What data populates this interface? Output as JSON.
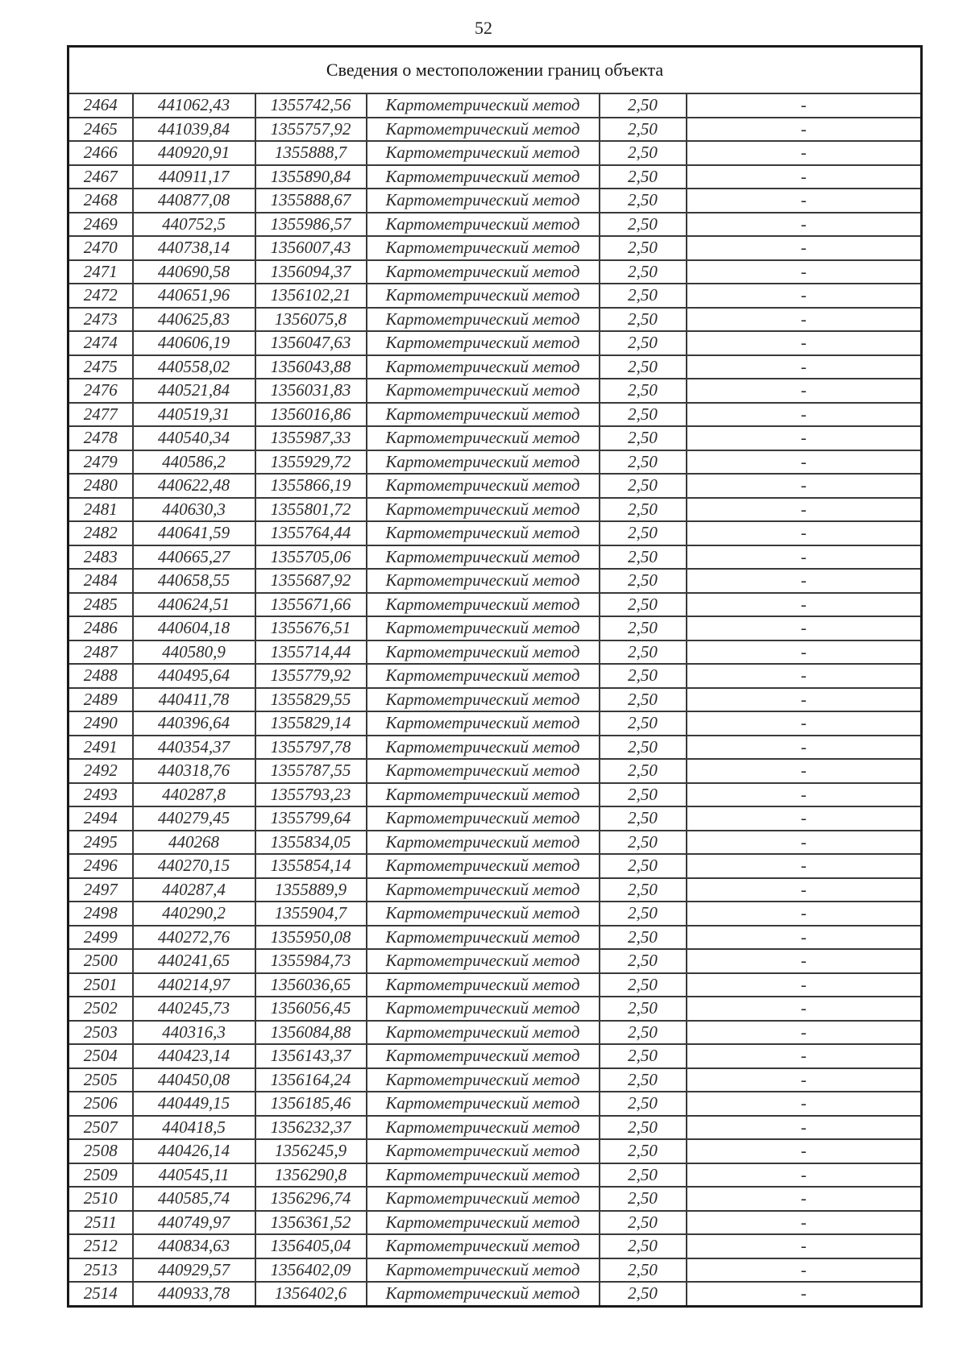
{
  "page": {
    "number": "52"
  },
  "table": {
    "title": "Сведения о местоположении границ объекта",
    "rows": [
      [
        "2464",
        "441062,43",
        "1355742,56",
        "Картометрический метод",
        "2,50",
        "-"
      ],
      [
        "2465",
        "441039,84",
        "1355757,92",
        "Картометрический метод",
        "2,50",
        "-"
      ],
      [
        "2466",
        "440920,91",
        "1355888,7",
        "Картометрический метод",
        "2,50",
        "-"
      ],
      [
        "2467",
        "440911,17",
        "1355890,84",
        "Картометрический метод",
        "2,50",
        "-"
      ],
      [
        "2468",
        "440877,08",
        "1355888,67",
        "Картометрический метод",
        "2,50",
        "-"
      ],
      [
        "2469",
        "440752,5",
        "1355986,57",
        "Картометрический метод",
        "2,50",
        "-"
      ],
      [
        "2470",
        "440738,14",
        "1356007,43",
        "Картометрический метод",
        "2,50",
        "-"
      ],
      [
        "2471",
        "440690,58",
        "1356094,37",
        "Картометрический метод",
        "2,50",
        "-"
      ],
      [
        "2472",
        "440651,96",
        "1356102,21",
        "Картометрический метод",
        "2,50",
        "-"
      ],
      [
        "2473",
        "440625,83",
        "1356075,8",
        "Картометрический метод",
        "2,50",
        "-"
      ],
      [
        "2474",
        "440606,19",
        "1356047,63",
        "Картометрический метод",
        "2,50",
        "-"
      ],
      [
        "2475",
        "440558,02",
        "1356043,88",
        "Картометрический метод",
        "2,50",
        "-"
      ],
      [
        "2476",
        "440521,84",
        "1356031,83",
        "Картометрический метод",
        "2,50",
        "-"
      ],
      [
        "2477",
        "440519,31",
        "1356016,86",
        "Картометрический метод",
        "2,50",
        "-"
      ],
      [
        "2478",
        "440540,34",
        "1355987,33",
        "Картометрический метод",
        "2,50",
        "-"
      ],
      [
        "2479",
        "440586,2",
        "1355929,72",
        "Картометрический метод",
        "2,50",
        "-"
      ],
      [
        "2480",
        "440622,48",
        "1355866,19",
        "Картометрический метод",
        "2,50",
        "-"
      ],
      [
        "2481",
        "440630,3",
        "1355801,72",
        "Картометрический метод",
        "2,50",
        "-"
      ],
      [
        "2482",
        "440641,59",
        "1355764,44",
        "Картометрический метод",
        "2,50",
        "-"
      ],
      [
        "2483",
        "440665,27",
        "1355705,06",
        "Картометрический метод",
        "2,50",
        "-"
      ],
      [
        "2484",
        "440658,55",
        "1355687,92",
        "Картометрический метод",
        "2,50",
        "-"
      ],
      [
        "2485",
        "440624,51",
        "1355671,66",
        "Картометрический метод",
        "2,50",
        "-"
      ],
      [
        "2486",
        "440604,18",
        "1355676,51",
        "Картометрический метод",
        "2,50",
        "-"
      ],
      [
        "2487",
        "440580,9",
        "1355714,44",
        "Картометрический метод",
        "2,50",
        "-"
      ],
      [
        "2488",
        "440495,64",
        "1355779,92",
        "Картометрический метод",
        "2,50",
        "-"
      ],
      [
        "2489",
        "440411,78",
        "1355829,55",
        "Картометрический метод",
        "2,50",
        "-"
      ],
      [
        "2490",
        "440396,64",
        "1355829,14",
        "Картометрический метод",
        "2,50",
        "-"
      ],
      [
        "2491",
        "440354,37",
        "1355797,78",
        "Картометрический метод",
        "2,50",
        "-"
      ],
      [
        "2492",
        "440318,76",
        "1355787,55",
        "Картометрический метод",
        "2,50",
        "-"
      ],
      [
        "2493",
        "440287,8",
        "1355793,23",
        "Картометрический метод",
        "2,50",
        "-"
      ],
      [
        "2494",
        "440279,45",
        "1355799,64",
        "Картометрический метод",
        "2,50",
        "-"
      ],
      [
        "2495",
        "440268",
        "1355834,05",
        "Картометрический метод",
        "2,50",
        "-"
      ],
      [
        "2496",
        "440270,15",
        "1355854,14",
        "Картометрический метод",
        "2,50",
        "-"
      ],
      [
        "2497",
        "440287,4",
        "1355889,9",
        "Картометрический метод",
        "2,50",
        "-"
      ],
      [
        "2498",
        "440290,2",
        "1355904,7",
        "Картометрический метод",
        "2,50",
        "-"
      ],
      [
        "2499",
        "440272,76",
        "1355950,08",
        "Картометрический метод",
        "2,50",
        "-"
      ],
      [
        "2500",
        "440241,65",
        "1355984,73",
        "Картометрический метод",
        "2,50",
        "-"
      ],
      [
        "2501",
        "440214,97",
        "1356036,65",
        "Картометрический метод",
        "2,50",
        "-"
      ],
      [
        "2502",
        "440245,73",
        "1356056,45",
        "Картометрический метод",
        "2,50",
        "-"
      ],
      [
        "2503",
        "440316,3",
        "1356084,88",
        "Картометрический метод",
        "2,50",
        "-"
      ],
      [
        "2504",
        "440423,14",
        "1356143,37",
        "Картометрический метод",
        "2,50",
        "-"
      ],
      [
        "2505",
        "440450,08",
        "1356164,24",
        "Картометрический метод",
        "2,50",
        "-"
      ],
      [
        "2506",
        "440449,15",
        "1356185,46",
        "Картометрический метод",
        "2,50",
        "-"
      ],
      [
        "2507",
        "440418,5",
        "1356232,37",
        "Картометрический метод",
        "2,50",
        "-"
      ],
      [
        "2508",
        "440426,14",
        "1356245,9",
        "Картометрический метод",
        "2,50",
        "-"
      ],
      [
        "2509",
        "440545,11",
        "1356290,8",
        "Картометрический метод",
        "2,50",
        "-"
      ],
      [
        "2510",
        "440585,74",
        "1356296,74",
        "Картометрический метод",
        "2,50",
        "-"
      ],
      [
        "2511",
        "440749,97",
        "1356361,52",
        "Картометрический метод",
        "2,50",
        "-"
      ],
      [
        "2512",
        "440834,63",
        "1356405,04",
        "Картометрический метод",
        "2,50",
        "-"
      ],
      [
        "2513",
        "440929,57",
        "1356402,09",
        "Картометрический метод",
        "2,50",
        "-"
      ],
      [
        "2514",
        "440933,78",
        "1356402,6",
        "Картометрический метод",
        "2,50",
        "-"
      ]
    ]
  }
}
